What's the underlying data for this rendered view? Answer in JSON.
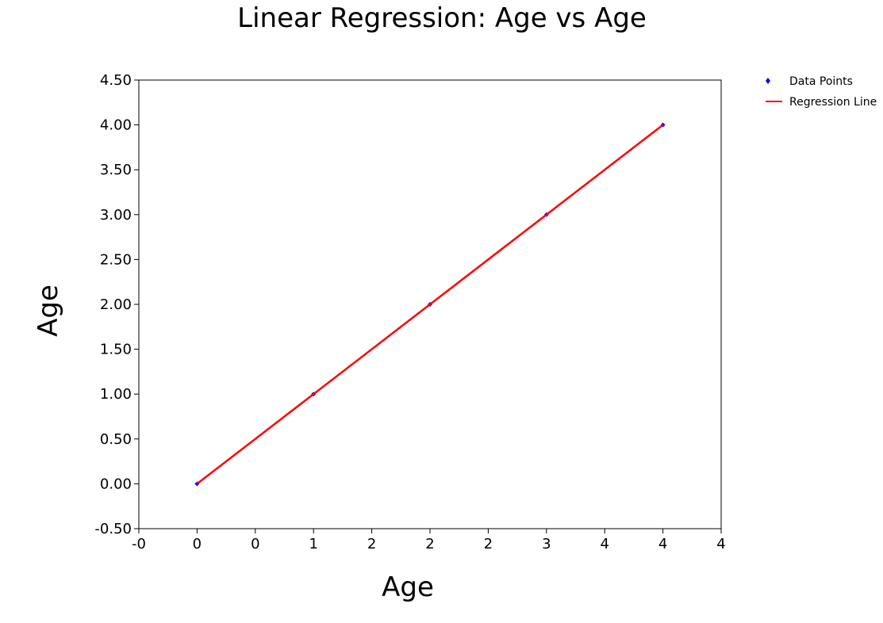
{
  "chart_data": {
    "type": "scatter",
    "title": "Linear Regression: Age vs Age",
    "xlabel": "Age",
    "ylabel": "Age",
    "xlim": [
      -0.5,
      4.5
    ],
    "ylim": [
      -0.5,
      4.5
    ],
    "x_ticks": [
      -0.5,
      0.0,
      0.5,
      1.0,
      1.5,
      2.0,
      2.5,
      3.0,
      3.5,
      4.0,
      4.5
    ],
    "x_tick_labels": [
      "-0",
      "0",
      "0",
      "1",
      "2",
      "2",
      "2",
      "3",
      "4",
      "4",
      "4"
    ],
    "y_ticks": [
      -0.5,
      0.0,
      0.5,
      1.0,
      1.5,
      2.0,
      2.5,
      3.0,
      3.5,
      4.0,
      4.5
    ],
    "y_tick_labels": [
      "-0.50",
      "0.00",
      "0.50",
      "1.00",
      "1.50",
      "2.00",
      "2.50",
      "3.00",
      "3.50",
      "4.00",
      "4.50"
    ],
    "grid": false,
    "legend": {
      "placement": "outside-top-right"
    },
    "series": [
      {
        "name": "Data Points",
        "type": "scatter",
        "color": "#0000ff",
        "marker": "diamond",
        "x": [
          0,
          1,
          2,
          3,
          4
        ],
        "y": [
          0,
          1,
          2,
          3,
          4
        ]
      },
      {
        "name": "Regression Line",
        "type": "line",
        "color": "#ff0000",
        "x": [
          0,
          4
        ],
        "y": [
          0,
          4
        ]
      }
    ]
  }
}
